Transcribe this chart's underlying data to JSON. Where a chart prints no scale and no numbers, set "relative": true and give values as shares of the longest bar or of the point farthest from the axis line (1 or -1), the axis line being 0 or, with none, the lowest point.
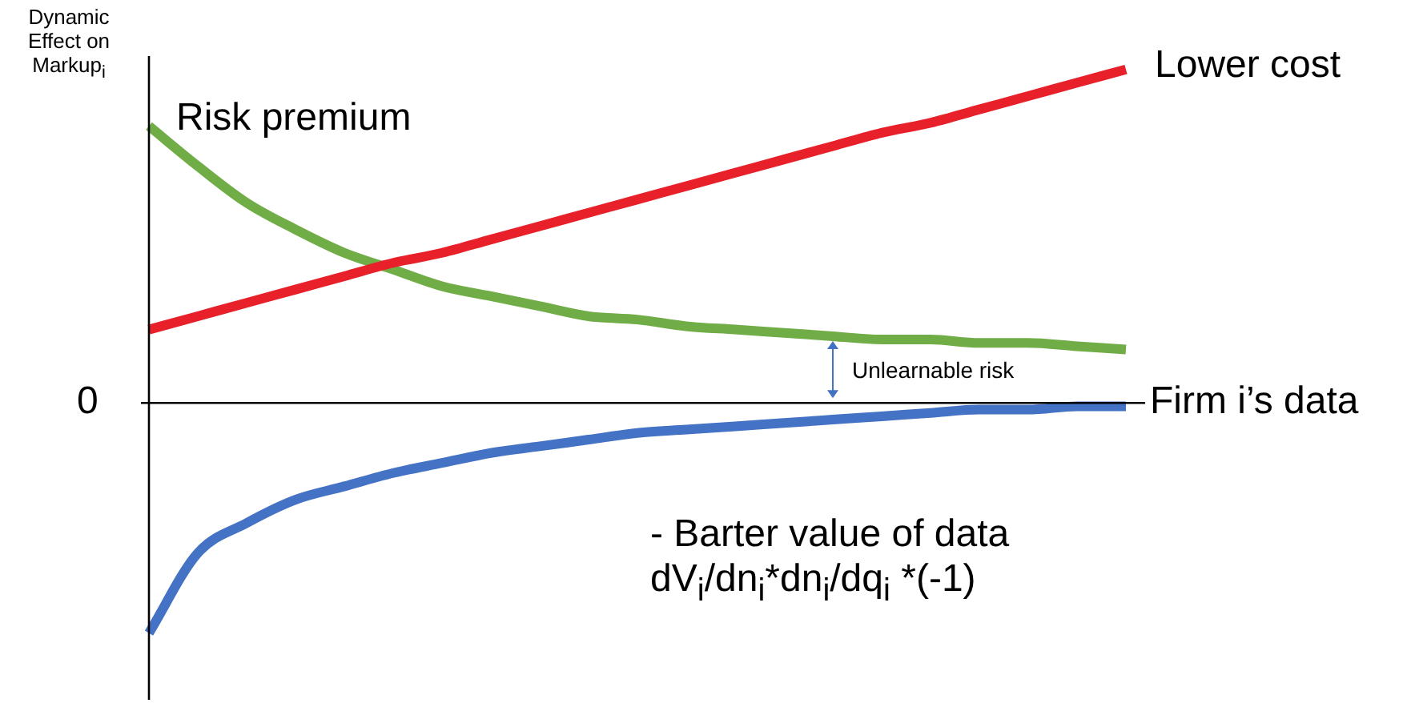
{
  "chart_data": {
    "type": "line",
    "relative": true,
    "marker": "none",
    "line_style": "solid",
    "ylabel": "Dynamic Effect on Markup$_{i}$",
    "xlabel": "Firm i’s data",
    "annotations": [
      "0",
      "Unlearnable risk"
    ],
    "categories": [
      null,
      null,
      null,
      null,
      null,
      null,
      null,
      null,
      null,
      null,
      null,
      null,
      null,
      null,
      null,
      null,
      null,
      null,
      null,
      null,
      null
    ],
    "series": [
      {
        "name": "Lower cost",
        "color": "#e8202a",
        "values": [
          0.22,
          0.26,
          0.3,
          0.34,
          0.38,
          0.42,
          0.45,
          0.49,
          0.53,
          0.57,
          0.61,
          0.65,
          0.69,
          0.73,
          0.77,
          0.81,
          0.84,
          0.88,
          0.92,
          0.96,
          1.0
        ]
      },
      {
        "name": "Risk premium",
        "color": "#70ad47",
        "values": [
          0.83,
          0.71,
          0.6,
          0.52,
          0.45,
          0.4,
          0.35,
          0.32,
          0.29,
          0.26,
          0.25,
          0.23,
          0.22,
          0.21,
          0.2,
          0.19,
          0.19,
          0.18,
          0.18,
          0.17,
          0.16
        ]
      },
      {
        "name": "- Barter value of data dV$_{i}$/dn$_{i}$*dn$_{i}$/dq$_{i}$ *(-1)",
        "color": "#4472c4",
        "values": [
          -0.69,
          -0.45,
          -0.36,
          -0.29,
          -0.25,
          -0.21,
          -0.18,
          -0.15,
          -0.13,
          -0.11,
          -0.09,
          -0.08,
          -0.07,
          -0.06,
          -0.05,
          -0.04,
          -0.03,
          -0.02,
          -0.02,
          -0.01,
          -0.01
        ]
      }
    ]
  }
}
